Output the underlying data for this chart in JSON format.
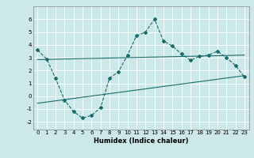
{
  "xlabel": "Humidex (Indice chaleur)",
  "background_color": "#cde8e8",
  "grid_color": "#ffffff",
  "line_color": "#1a6b6b",
  "line1_x": [
    0,
    1,
    2,
    3,
    4,
    5,
    6,
    7,
    8,
    9,
    10,
    11,
    12,
    13,
    14,
    15,
    16,
    17,
    18,
    19,
    20,
    21,
    22,
    23
  ],
  "line1_y": [
    3.6,
    2.9,
    1.4,
    -0.3,
    -1.2,
    -1.7,
    -1.5,
    -0.9,
    1.4,
    1.9,
    3.2,
    4.7,
    5.0,
    6.0,
    4.3,
    3.9,
    3.3,
    2.8,
    3.1,
    3.2,
    3.5,
    3.0,
    2.4,
    1.5
  ],
  "line2_x": [
    0,
    23
  ],
  "line2_y": [
    2.85,
    3.2
  ],
  "line3_x": [
    0,
    23
  ],
  "line3_y": [
    -0.55,
    1.6
  ],
  "ylim": [
    -2.6,
    7.0
  ],
  "xlim": [
    -0.5,
    23.5
  ],
  "yticks": [
    -2,
    -1,
    0,
    1,
    2,
    3,
    4,
    5,
    6
  ],
  "xticks": [
    0,
    1,
    2,
    3,
    4,
    5,
    6,
    7,
    8,
    9,
    10,
    11,
    12,
    13,
    14,
    15,
    16,
    17,
    18,
    19,
    20,
    21,
    22,
    23
  ],
  "tick_fontsize": 5.0,
  "xlabel_fontsize": 6.0,
  "marker_size": 2.0,
  "line_width": 0.8
}
